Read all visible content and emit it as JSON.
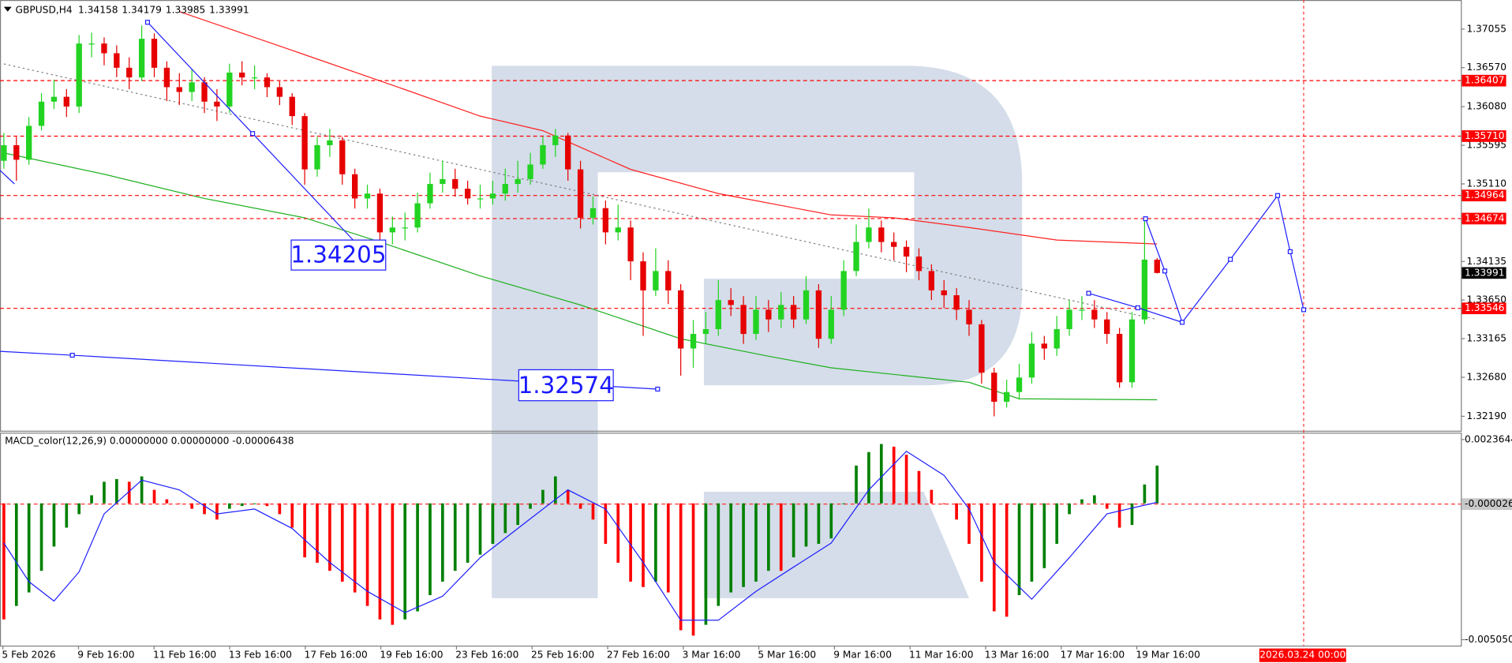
{
  "chart_data": [
    {
      "type": "candlestick",
      "title": "GBPUSD,H4",
      "up_color": "#22d322",
      "down_color": "#e60000",
      "level_color": "#ff0000",
      "last_color": "#000000",
      "ylim": [
        1.32009,
        1.3742
      ],
      "yticks": [
        1.37055,
        {
          "value": 1.3657,
          "label": "1.36570"
        },
        {
          "value": 1.3608,
          "label": "1.36080"
        },
        1.35595,
        {
          "value": 1.3511,
          "label": "1.35110"
        },
        1.34135,
        {
          "value": 1.3365,
          "label": "1.33650"
        },
        1.33165,
        {
          "value": 1.3268,
          "label": "1.32680"
        },
        {
          "value": 1.3219,
          "label": "1.32190"
        }
      ],
      "levels": [
        1.36407,
        {
          "value": 1.3571,
          "label": "1.35710"
        },
        1.34964,
        1.34674,
        1.33546
      ],
      "x_labels": [
        "5 Feb 2026",
        "9 Feb 16:00",
        "11 Feb 16:00",
        "13 Feb 16:00",
        "17 Feb 16:00",
        "19 Feb 16:00",
        "23 Feb 16:00",
        "25 Feb 16:00",
        "27 Feb 16:00",
        "3 Mar 16:00",
        "5 Mar 16:00",
        "9 Mar 16:00",
        "11 Mar 16:00",
        "13 Mar 16:00",
        "17 Mar 16:00",
        "19 Mar 16:00"
      ],
      "marker_label": "2026.03.24 00:00",
      "annotations": [
        "1.34205",
        "1.32574"
      ],
      "candles": [
        [
          1.354,
          1.3575,
          1.353,
          1.35596
        ],
        [
          1.35596,
          1.357,
          1.3515,
          1.35413
        ],
        [
          1.35413,
          1.3595,
          1.3535,
          1.35839
        ],
        [
          1.35839,
          1.3625,
          1.3578,
          1.36143
        ],
        [
          1.36143,
          1.3642,
          1.3605,
          1.36204
        ],
        [
          1.36204,
          1.363,
          1.3595,
          1.36082
        ],
        [
          1.36082,
          1.3698,
          1.36,
          1.36873
        ],
        [
          1.36873,
          1.3701,
          1.367,
          1.36873
        ],
        [
          1.36873,
          1.3695,
          1.366,
          1.36751
        ],
        [
          1.36751,
          1.3685,
          1.3645,
          1.36569
        ],
        [
          1.36569,
          1.367,
          1.363,
          1.36447
        ],
        [
          1.36447,
          1.371,
          1.364,
          1.36933
        ],
        [
          1.36933,
          1.37,
          1.3645,
          1.36569
        ],
        [
          1.36569,
          1.3665,
          1.3615,
          1.36325
        ],
        [
          1.36325,
          1.365,
          1.361,
          1.36265
        ],
        [
          1.36265,
          1.3655,
          1.3615,
          1.36386
        ],
        [
          1.36386,
          1.3645,
          1.36,
          1.36143
        ],
        [
          1.36143,
          1.363,
          1.359,
          1.36082
        ],
        [
          1.36082,
          1.3662,
          1.36,
          1.36508
        ],
        [
          1.36508,
          1.3665,
          1.3635,
          1.36447
        ],
        [
          1.36447,
          1.366,
          1.363,
          1.36447
        ],
        [
          1.36447,
          1.365,
          1.362,
          1.36325
        ],
        [
          1.36325,
          1.364,
          1.361,
          1.36204
        ],
        [
          1.36204,
          1.3625,
          1.3585,
          1.35961
        ],
        [
          1.35961,
          1.36,
          1.351,
          1.35292
        ],
        [
          1.35292,
          1.357,
          1.352,
          1.35596
        ],
        [
          1.35596,
          1.358,
          1.3545,
          1.35657
        ],
        [
          1.35657,
          1.357,
          1.351,
          1.35231
        ],
        [
          1.35231,
          1.353,
          1.348,
          1.34927
        ],
        [
          1.34927,
          1.351,
          1.348,
          1.34988
        ],
        [
          1.34988,
          1.3505,
          1.343,
          1.34501
        ],
        [
          1.34501,
          1.347,
          1.3435,
          1.34562
        ],
        [
          1.34562,
          1.3475,
          1.344,
          1.34562
        ],
        [
          1.34562,
          1.35,
          1.345,
          1.34866
        ],
        [
          1.34866,
          1.3525,
          1.348,
          1.35109
        ],
        [
          1.35109,
          1.354,
          1.35,
          1.3517
        ],
        [
          1.3517,
          1.353,
          1.3495,
          1.35049
        ],
        [
          1.35049,
          1.3515,
          1.3485,
          1.34927
        ],
        [
          1.34927,
          1.351,
          1.348,
          1.34927
        ],
        [
          1.34927,
          1.3515,
          1.3485,
          1.34988
        ],
        [
          1.34988,
          1.353,
          1.349,
          1.35109
        ],
        [
          1.35109,
          1.354,
          1.35,
          1.3517
        ],
        [
          1.3517,
          1.355,
          1.351,
          1.35353
        ],
        [
          1.35353,
          1.357,
          1.353,
          1.35596
        ],
        [
          1.35596,
          1.358,
          1.3545,
          1.35717
        ],
        [
          1.35717,
          1.3575,
          1.3515,
          1.35292
        ],
        [
          1.35292,
          1.354,
          1.3455,
          1.34684
        ],
        [
          1.34684,
          1.3495,
          1.346,
          1.34805
        ],
        [
          1.34805,
          1.349,
          1.3435,
          1.34501
        ],
        [
          1.34501,
          1.3485,
          1.344,
          1.34562
        ],
        [
          1.34562,
          1.3465,
          1.339,
          1.34137
        ],
        [
          1.34137,
          1.3425,
          1.332,
          1.33772
        ],
        [
          1.33772,
          1.343,
          1.337,
          1.34015
        ],
        [
          1.34015,
          1.3415,
          1.336,
          1.33772
        ],
        [
          1.33772,
          1.3385,
          1.327,
          1.33042
        ],
        [
          1.33042,
          1.334,
          1.328,
          1.33225
        ],
        [
          1.33225,
          1.335,
          1.331,
          1.33285
        ],
        [
          1.33285,
          1.339,
          1.332,
          1.3365
        ],
        [
          1.3365,
          1.338,
          1.3345,
          1.33589
        ],
        [
          1.33589,
          1.337,
          1.331,
          1.33225
        ],
        [
          1.33225,
          1.337,
          1.3315,
          1.33529
        ],
        [
          1.33529,
          1.3365,
          1.3325,
          1.33407
        ],
        [
          1.33407,
          1.3375,
          1.333,
          1.33589
        ],
        [
          1.33589,
          1.337,
          1.333,
          1.33407
        ],
        [
          1.33407,
          1.3395,
          1.3335,
          1.33772
        ],
        [
          1.33772,
          1.3385,
          1.3305,
          1.33164
        ],
        [
          1.33164,
          1.337,
          1.331,
          1.33529
        ],
        [
          1.33529,
          1.3415,
          1.3345,
          1.34015
        ],
        [
          1.34015,
          1.346,
          1.3395,
          1.3438
        ],
        [
          1.3438,
          1.348,
          1.343,
          1.34562
        ],
        [
          1.34562,
          1.3465,
          1.3425,
          1.3438
        ],
        [
          1.3438,
          1.345,
          1.3415,
          1.34319
        ],
        [
          1.34319,
          1.344,
          1.34,
          1.34197
        ],
        [
          1.34197,
          1.343,
          1.339,
          1.34015
        ],
        [
          1.34015,
          1.341,
          1.3365,
          1.33772
        ],
        [
          1.33772,
          1.339,
          1.3355,
          1.33711
        ],
        [
          1.33711,
          1.338,
          1.334,
          1.33529
        ],
        [
          1.33529,
          1.3365,
          1.332,
          1.33346
        ],
        [
          1.33346,
          1.334,
          1.326,
          1.32738
        ],
        [
          1.32738,
          1.328,
          1.3219,
          1.32373
        ],
        [
          1.32373,
          1.3265,
          1.323,
          1.32495
        ],
        [
          1.32495,
          1.3285,
          1.324,
          1.32677
        ],
        [
          1.32677,
          1.3325,
          1.326,
          1.33103
        ],
        [
          1.33103,
          1.332,
          1.329,
          1.33042
        ],
        [
          1.33042,
          1.3345,
          1.3295,
          1.33285
        ],
        [
          1.33285,
          1.3365,
          1.332,
          1.33529
        ],
        [
          1.33529,
          1.337,
          1.334,
          1.33529
        ],
        [
          1.33529,
          1.3365,
          1.333,
          1.33407
        ],
        [
          1.33407,
          1.335,
          1.331,
          1.33225
        ],
        [
          1.33225,
          1.333,
          1.3255,
          1.32617
        ],
        [
          1.32617,
          1.335,
          1.3255,
          1.33407
        ],
        [
          1.33407,
          1.3465,
          1.3335,
          1.34158
        ],
        [
          1.34158,
          1.34179,
          1.33985,
          1.33991
        ]
      ],
      "overlays": [
        {
          "color": "#ff2020",
          "x": [
            14,
            23,
            31,
            38,
            43,
            50,
            57,
            66,
            71,
            77,
            84,
            92
          ],
          "values": [
            1.37274,
            1.36787,
            1.3635,
            1.35961,
            1.35778,
            1.35292,
            1.34988,
            1.3472,
            1.34684,
            1.34562,
            1.34404,
            1.34355
          ]
        },
        {
          "color": "#20b020",
          "x": [
            0,
            8,
            16,
            24,
            30,
            38,
            46,
            54,
            61,
            66,
            77,
            81,
            92
          ],
          "values": [
            1.35499,
            1.35231,
            1.34927,
            1.34684,
            1.3438,
            1.33954,
            1.33589,
            1.33164,
            1.32945,
            1.32799,
            1.32617,
            1.3241,
            1.32398
          ]
        },
        {
          "color": "#808080",
          "dashed": true,
          "x": [
            0,
            92
          ],
          "values": [
            1.36617,
            1.33407
          ]
        }
      ]
    },
    {
      "type": "bar",
      "title": "MACD_color(12,26,9) 0.00000000 0.00000000 -0.00006438",
      "up_color": "#008000",
      "down_color": "#ff0000",
      "ylim": [
        -0.00527,
        0.00262
      ],
      "yticks": [
        0.0023644,
        -2.6e-05,
        -0.0050508
      ],
      "values": [
        -0.0043,
        -0.0038,
        -0.0033,
        -0.0025,
        -0.0016,
        -0.0009,
        -0.0004,
        0.0003,
        0.0008,
        0.0009,
        0.0008,
        0.001,
        0.0005,
        0.00015,
        0,
        -0.0002,
        -0.0004,
        -0.0006,
        -0.0002,
        -0.0001,
        -3e-05,
        -0.0001,
        -0.0004,
        -0.0009,
        -0.002,
        -0.0022,
        -0.0025,
        -0.0029,
        -0.0033,
        -0.0038,
        -0.0043,
        -0.0045,
        -0.0043,
        -0.004,
        -0.0034,
        -0.0029,
        -0.0025,
        -0.0022,
        -0.0019,
        -0.0015,
        -0.0011,
        -0.0008,
        -0.0002,
        0.0005,
        0.001,
        0.0005,
        -0.0002,
        -0.0006,
        -0.0015,
        -0.0022,
        -0.0029,
        -0.0031,
        -0.0029,
        -0.0033,
        -0.0047,
        -0.0049,
        -0.0045,
        -0.0038,
        -0.0033,
        -0.0031,
        -0.0029,
        -0.0025,
        -0.0025,
        -0.002,
        -0.0016,
        -0.0015,
        -0.0013,
        -3e-05,
        0.0014,
        0.0019,
        0.0022,
        0.0021,
        0.0018,
        0.0012,
        0.0005,
        -3e-05,
        -0.0006,
        -0.0015,
        -0.0029,
        -0.004,
        -0.0042,
        -0.0034,
        -0.0029,
        -0.0024,
        -0.0015,
        -0.0004,
        0.00015,
        0.0003,
        -0.0002,
        -0.0009,
        -0.0008,
        0.0007,
        0.0014
      ],
      "signal": {
        "color": "#2020ff",
        "x": [
          0,
          2,
          4,
          6,
          8,
          11,
          14,
          17,
          20,
          23,
          26,
          29,
          32,
          35,
          38,
          42,
          45,
          48,
          51,
          54,
          57,
          60,
          63,
          66,
          69,
          72,
          75,
          77,
          79,
          82,
          85,
          88,
          92
        ],
        "values": [
          -0.00147,
          -0.0029,
          -0.00362,
          -0.00254,
          -0.00039,
          0.00086,
          0.0005,
          -0.00039,
          -0.00021,
          -0.00093,
          -0.00219,
          -0.00326,
          -0.00405,
          -0.00344,
          -0.00201,
          -0.00057,
          0.0005,
          -0.00021,
          -0.00219,
          -0.00433,
          -0.00433,
          -0.00326,
          -0.00236,
          -0.00147,
          0.0005,
          0.00193,
          0.00104,
          -0.00021,
          -0.00219,
          -0.00355,
          -0.00201,
          -0.00039,
          4e-05
        ]
      }
    }
  ]
}
